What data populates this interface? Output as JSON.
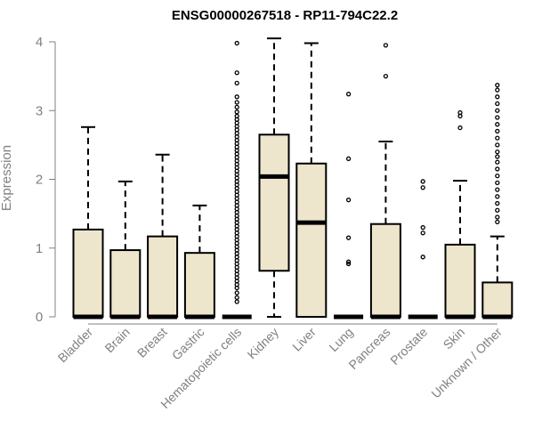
{
  "chart_data": {
    "type": "boxplot",
    "title": "ENSG00000267518 - RP11-794C22.2",
    "xlabel": "",
    "ylabel": "Expression",
    "ylim": [
      0,
      4
    ],
    "yticks": [
      0,
      1,
      2,
      3,
      4
    ],
    "colors": {
      "box_fill": "#ede6cd",
      "stroke": "#000000",
      "axis": "#808080"
    },
    "categories": [
      "Bladder",
      "Brain",
      "Breast",
      "Gastric",
      "Hematopoietic cells",
      "Kidney",
      "Liver",
      "Lung",
      "Pancreas",
      "Prostate",
      "Skin",
      "Unknown / Other"
    ],
    "boxes": [
      {
        "name": "Bladder",
        "q1": 0,
        "median": 0,
        "q3": 1.27,
        "whisker_low": 0,
        "whisker_high": 2.76,
        "outliers": []
      },
      {
        "name": "Brain",
        "q1": 0,
        "median": 0,
        "q3": 0.97,
        "whisker_low": 0,
        "whisker_high": 1.97,
        "outliers": []
      },
      {
        "name": "Breast",
        "q1": 0,
        "median": 0,
        "q3": 1.17,
        "whisker_low": 0,
        "whisker_high": 2.36,
        "outliers": []
      },
      {
        "name": "Gastric",
        "q1": 0,
        "median": 0,
        "q3": 0.93,
        "whisker_low": 0,
        "whisker_high": 1.62,
        "outliers": []
      },
      {
        "name": "Hematopoietic cells",
        "q1": 0,
        "median": 0,
        "q3": 0,
        "whisker_low": 0,
        "whisker_high": 0,
        "outliers": [
          3.98,
          3.55,
          3.4,
          3.2,
          3.12,
          3.05,
          2.98,
          2.92,
          2.87,
          2.82,
          2.77,
          2.72,
          2.67,
          2.62,
          2.57,
          2.52,
          2.47,
          2.42,
          2.37,
          2.32,
          2.27,
          2.22,
          2.17,
          2.12,
          2.07,
          2.02,
          1.97,
          1.92,
          1.87,
          1.82,
          1.77,
          1.72,
          1.67,
          1.62,
          1.57,
          1.52,
          1.47,
          1.42,
          1.37,
          1.32,
          1.27,
          1.22,
          1.17,
          1.12,
          1.07,
          1.02,
          0.97,
          0.92,
          0.87,
          0.82,
          0.77,
          0.72,
          0.67,
          0.62,
          0.57,
          0.52,
          0.47,
          0.42,
          0.35,
          0.28,
          0.22
        ]
      },
      {
        "name": "Kidney",
        "q1": 0.67,
        "median": 2.04,
        "q3": 2.65,
        "whisker_low": 0,
        "whisker_high": 4.05,
        "outliers": []
      },
      {
        "name": "Liver",
        "q1": 0,
        "median": 1.37,
        "q3": 2.23,
        "whisker_low": 0,
        "whisker_high": 3.98,
        "outliers": []
      },
      {
        "name": "Lung",
        "q1": 0,
        "median": 0,
        "q3": 0,
        "whisker_low": 0,
        "whisker_high": 0,
        "outliers": [
          3.24,
          2.3,
          1.7,
          1.15,
          0.8,
          0.77
        ]
      },
      {
        "name": "Pancreas",
        "q1": 0,
        "median": 0,
        "q3": 1.35,
        "whisker_low": 0,
        "whisker_high": 2.55,
        "outliers": [
          3.95,
          3.5
        ]
      },
      {
        "name": "Prostate",
        "q1": 0,
        "median": 0,
        "q3": 0,
        "whisker_low": 0,
        "whisker_high": 0,
        "outliers": [
          1.97,
          1.88,
          1.3,
          1.22,
          0.87
        ]
      },
      {
        "name": "Skin",
        "q1": 0,
        "median": 0,
        "q3": 1.05,
        "whisker_low": 0,
        "whisker_high": 1.98,
        "outliers": [
          2.97,
          2.92,
          2.75
        ]
      },
      {
        "name": "Unknown / Other",
        "q1": 0,
        "median": 0,
        "q3": 0.5,
        "whisker_low": 0,
        "whisker_high": 1.17,
        "outliers": [
          3.37,
          3.3,
          3.2,
          3.1,
          3.0,
          2.9,
          2.8,
          2.7,
          2.6,
          2.5,
          2.4,
          2.33,
          2.25,
          2.15,
          2.05,
          1.95,
          1.85,
          1.75,
          1.65,
          1.55,
          1.45,
          1.38
        ]
      }
    ]
  }
}
